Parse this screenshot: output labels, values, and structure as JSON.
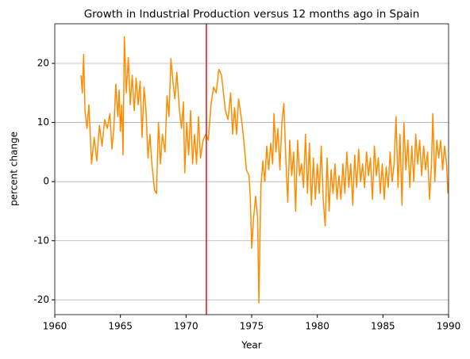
{
  "chart_data": {
    "type": "line",
    "title": "Growth in Industrial Production versus 12 months ago in Spain",
    "xlabel": "Year",
    "ylabel": "percent change",
    "x": [
      1962.0,
      1962.1,
      1962.2,
      1962.3,
      1962.45,
      1962.6,
      1962.8,
      1963.0,
      1963.2,
      1963.4,
      1963.6,
      1963.8,
      1964.0,
      1964.2,
      1964.35,
      1964.5,
      1964.65,
      1964.8,
      1964.9,
      1965.0,
      1965.1,
      1965.2,
      1965.3,
      1965.45,
      1965.6,
      1965.75,
      1965.9,
      1966.05,
      1966.2,
      1966.35,
      1966.5,
      1966.65,
      1966.8,
      1966.95,
      1967.1,
      1967.25,
      1967.4,
      1967.6,
      1967.75,
      1967.9,
      1968.05,
      1968.2,
      1968.4,
      1968.55,
      1968.7,
      1968.85,
      1969.0,
      1969.15,
      1969.3,
      1969.5,
      1969.65,
      1969.8,
      1969.9,
      1970.05,
      1970.2,
      1970.35,
      1970.5,
      1970.65,
      1970.8,
      1970.95,
      1971.1,
      1971.3,
      1971.5,
      1971.7,
      1971.9,
      1972.1,
      1972.3,
      1972.5,
      1972.7,
      1972.85,
      1973.0,
      1973.2,
      1973.4,
      1973.55,
      1973.7,
      1973.85,
      1974.0,
      1974.2,
      1974.4,
      1974.6,
      1974.8,
      1974.9,
      1975.0,
      1975.15,
      1975.3,
      1975.45,
      1975.55,
      1975.7,
      1975.85,
      1976.0,
      1976.15,
      1976.3,
      1976.45,
      1976.6,
      1976.7,
      1976.85,
      1977.0,
      1977.15,
      1977.3,
      1977.45,
      1977.6,
      1977.75,
      1977.9,
      1978.05,
      1978.2,
      1978.35,
      1978.5,
      1978.65,
      1978.8,
      1978.95,
      1979.1,
      1979.25,
      1979.4,
      1979.55,
      1979.7,
      1979.85,
      1980.0,
      1980.15,
      1980.3,
      1980.45,
      1980.6,
      1980.75,
      1980.9,
      1981.05,
      1981.2,
      1981.35,
      1981.5,
      1981.65,
      1981.8,
      1981.95,
      1982.1,
      1982.25,
      1982.4,
      1982.55,
      1982.7,
      1982.85,
      1983.0,
      1983.15,
      1983.3,
      1983.45,
      1983.6,
      1983.75,
      1983.9,
      1984.05,
      1984.2,
      1984.35,
      1984.5,
      1984.65,
      1984.8,
      1984.95,
      1985.1,
      1985.25,
      1985.4,
      1985.55,
      1985.7,
      1985.85,
      1986.0,
      1986.15,
      1986.3,
      1986.45,
      1986.6,
      1986.75,
      1986.9,
      1987.05,
      1987.2,
      1987.35,
      1987.5,
      1987.65,
      1987.8,
      1987.95,
      1988.1,
      1988.25,
      1988.4,
      1988.55,
      1988.7,
      1988.8,
      1988.95,
      1989.1,
      1989.25,
      1989.4,
      1989.55,
      1989.7,
      1989.85,
      1989.95
    ],
    "series": [
      {
        "color": "#ff8c00",
        "values": [
          18,
          15,
          21.5,
          12,
          9,
          13,
          3,
          7.5,
          3.5,
          9.5,
          6,
          10.5,
          9,
          11.5,
          5.5,
          9,
          16.5,
          11,
          15.5,
          8.5,
          13,
          4.5,
          24.5,
          15,
          21,
          13,
          18,
          12,
          17.5,
          13,
          17,
          7.5,
          16,
          12,
          4,
          8,
          3,
          -1.5,
          -2,
          10,
          3,
          8,
          5,
          14.5,
          11,
          20.8,
          17,
          14,
          18.5,
          12,
          9,
          13.5,
          1.5,
          10,
          4.5,
          12,
          3,
          8,
          3,
          11,
          4,
          7,
          8,
          7,
          13,
          16,
          15,
          19,
          18,
          15,
          12,
          10.5,
          15,
          8,
          12.5,
          8,
          14,
          11,
          7,
          2,
          1,
          -3,
          -11.3,
          -6,
          -2.5,
          -6,
          -20.5,
          -1,
          3.5,
          0,
          6,
          2,
          6.5,
          3,
          11.5,
          5,
          9,
          2,
          10,
          13.2,
          4,
          -3.5,
          7,
          1,
          5,
          -5,
          7,
          1,
          3,
          -1,
          8,
          -2,
          6.5,
          -4,
          4,
          -3,
          3,
          -2,
          6,
          -3,
          -7.5,
          4,
          -5,
          2,
          -2,
          3,
          -3,
          1,
          -3,
          3,
          -2,
          5,
          -1,
          3,
          -4,
          4.5,
          -1,
          5.5,
          0,
          3,
          -1,
          5,
          1,
          4,
          -3,
          6,
          1,
          4,
          -2,
          3,
          -3,
          2.5,
          -1,
          5,
          0,
          3,
          11,
          -1,
          8,
          -4,
          10,
          2,
          7,
          -1,
          6,
          0,
          8,
          3,
          7,
          1,
          6,
          2,
          5,
          -3,
          3,
          11.5,
          0,
          7,
          4,
          7,
          2,
          6,
          3,
          -2
        ]
      }
    ],
    "vline": {
      "x": 1971.55,
      "color": "#e8110f"
    },
    "xlim": [
      1960,
      1990
    ],
    "xticks": [
      1960,
      1965,
      1970,
      1975,
      1980,
      1985,
      1990
    ],
    "ylim": [
      -22.5,
      26.7
    ],
    "yticks": [
      -20,
      -10,
      0,
      10,
      20
    ],
    "grid": "y"
  }
}
